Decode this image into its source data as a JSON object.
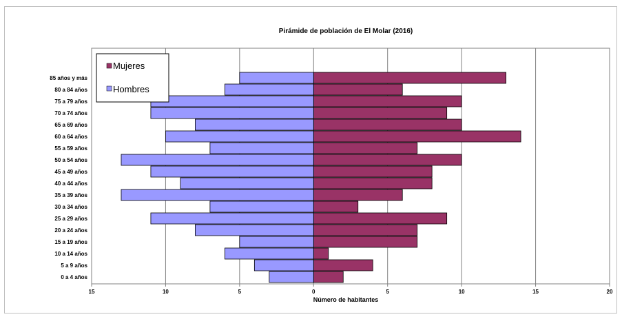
{
  "chart_data": {
    "type": "bar",
    "orientation": "horizontal",
    "title": "Pirámide de población de El Molar (2016)",
    "xlabel": "Número de habitantes",
    "ylabel": "",
    "xlim": [
      -15,
      20
    ],
    "x_ticks": [
      -15,
      -10,
      -5,
      0,
      5,
      10,
      15,
      20
    ],
    "x_tick_labels": [
      "15",
      "10",
      "5",
      "0",
      "5",
      "10",
      "15",
      "20"
    ],
    "grid": true,
    "legend_position": "top-left",
    "categories": [
      "0 a 4 años",
      "5 a 9 años",
      "10 a 14 años",
      "15 a 19 años",
      "20 a 24 años",
      "25 a 29 años",
      "30 a 34 años",
      "35 a 39 años",
      "40 a 44 años",
      "45 a 49 años",
      "50 a 54 años",
      "55 a 59 años",
      "60 a 64 años",
      "65 a 69 años",
      "70 a 74 años",
      "75 a 79 años",
      "80 a 84 años",
      "85 años y más"
    ],
    "series": [
      {
        "name": "Mujeres",
        "color": "#993366",
        "values": [
          2,
          4,
          1,
          7,
          7,
          9,
          3,
          6,
          8,
          8,
          10,
          7,
          14,
          10,
          9,
          10,
          6,
          13
        ]
      },
      {
        "name": "Hombres",
        "color": "#9999ff",
        "values": [
          3,
          4,
          6,
          5,
          8,
          11,
          7,
          13,
          9,
          11,
          13,
          7,
          10,
          8,
          11,
          11,
          6,
          5
        ]
      }
    ]
  }
}
